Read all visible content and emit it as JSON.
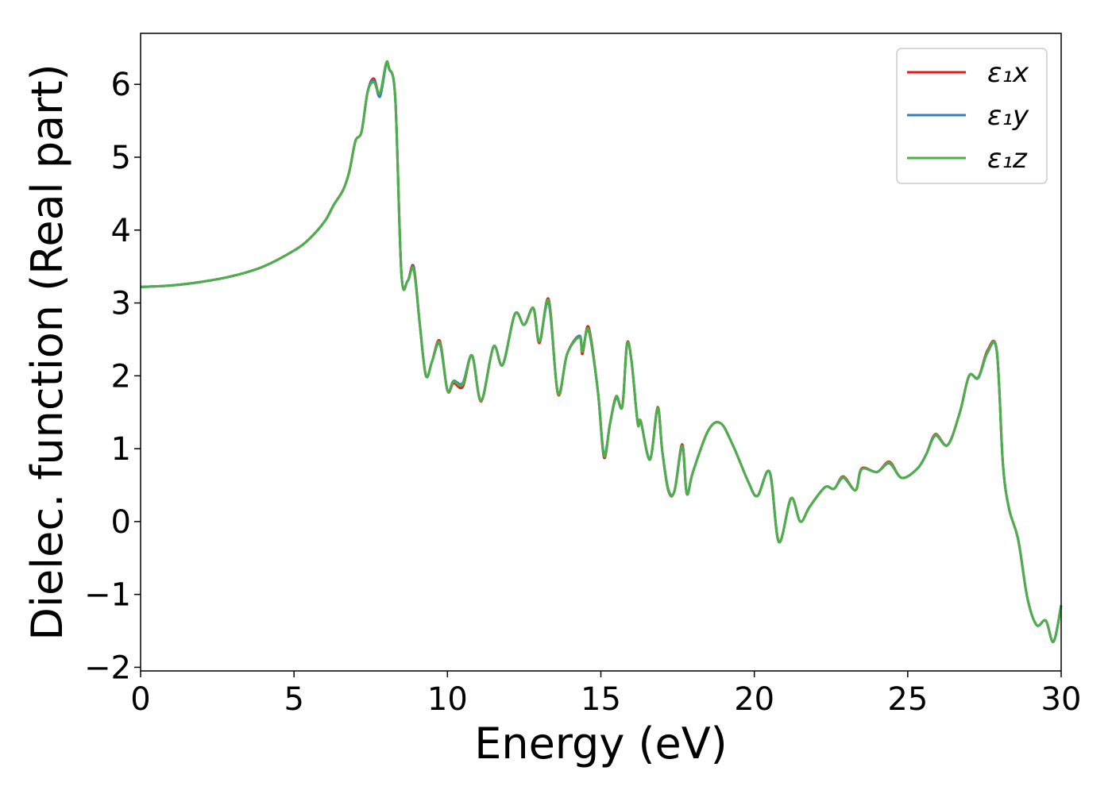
{
  "chart_data": {
    "type": "line",
    "xlabel": "Energy (eV)",
    "ylabel": "Dielec. function (Real part)",
    "xlim": [
      0,
      30
    ],
    "ylim": [
      -2.05,
      6.7
    ],
    "x_ticks": [
      0,
      5,
      10,
      15,
      20,
      25,
      30
    ],
    "x_tick_labels": [
      "0",
      "5",
      "10",
      "15",
      "20",
      "25",
      "30"
    ],
    "y_ticks": [
      -2,
      -1,
      0,
      1,
      2,
      3,
      4,
      5,
      6
    ],
    "y_tick_labels": [
      "−2",
      "−1",
      "0",
      "1",
      "2",
      "3",
      "4",
      "5",
      "6"
    ],
    "grid": false,
    "legend_position": "top-right",
    "x": [
      0,
      1,
      2,
      3,
      4,
      5,
      5.5,
      6,
      6.3,
      6.6,
      6.8,
      7.0,
      7.2,
      7.4,
      7.6,
      7.8,
      8.0,
      8.1,
      8.3,
      8.5,
      8.7,
      8.9,
      9.1,
      9.3,
      9.5,
      9.75,
      10.0,
      10.2,
      10.5,
      10.8,
      11.1,
      11.5,
      11.8,
      12.2,
      12.5,
      12.8,
      13.0,
      13.3,
      13.6,
      13.9,
      14.3,
      14.4,
      14.6,
      14.9,
      15.1,
      15.3,
      15.5,
      15.7,
      15.85,
      16.0,
      16.2,
      16.3,
      16.6,
      16.85,
      17.0,
      17.2,
      17.4,
      17.65,
      17.8,
      18.0,
      18.5,
      18.9,
      19.3,
      19.8,
      20.1,
      20.5,
      20.8,
      21.2,
      21.5,
      21.8,
      22.3,
      22.6,
      22.9,
      23.3,
      23.5,
      24.0,
      24.4,
      24.8,
      25.3,
      25.6,
      25.9,
      26.3,
      26.7,
      27.0,
      27.3,
      27.6,
      27.9,
      28.1,
      28.3,
      28.6,
      28.9,
      29.2,
      29.5,
      29.75,
      30.0
    ],
    "series": [
      {
        "name": "ε₁x",
        "color": "#e41a1c",
        "values": [
          3.22,
          3.24,
          3.29,
          3.37,
          3.5,
          3.72,
          3.88,
          4.12,
          4.35,
          4.55,
          4.8,
          5.22,
          5.35,
          5.9,
          6.08,
          5.85,
          6.28,
          6.22,
          5.8,
          3.4,
          3.3,
          3.5,
          2.7,
          2.0,
          2.2,
          2.48,
          1.8,
          1.9,
          1.85,
          2.28,
          1.65,
          2.4,
          2.15,
          2.85,
          2.7,
          2.93,
          2.45,
          3.05,
          1.75,
          2.3,
          2.55,
          2.3,
          2.67,
          1.8,
          0.88,
          1.35,
          1.72,
          1.58,
          2.44,
          2.2,
          1.35,
          1.38,
          0.85,
          1.57,
          0.97,
          0.42,
          0.42,
          1.06,
          0.38,
          0.68,
          1.25,
          1.35,
          1.05,
          0.55,
          0.35,
          0.68,
          -0.28,
          0.32,
          0.0,
          0.2,
          0.47,
          0.45,
          0.62,
          0.43,
          0.73,
          0.68,
          0.82,
          0.6,
          0.72,
          0.92,
          1.2,
          1.05,
          1.5,
          2.0,
          1.98,
          2.35,
          2.35,
          0.8,
          0.18,
          -0.25,
          -1.05,
          -1.42,
          -1.36,
          -1.65,
          -1.15
        ]
      },
      {
        "name": "ε₁y",
        "color": "#377eb8",
        "values": [
          3.22,
          3.24,
          3.29,
          3.37,
          3.5,
          3.72,
          3.88,
          4.12,
          4.35,
          4.55,
          4.8,
          5.22,
          5.35,
          5.9,
          6.06,
          5.83,
          6.27,
          6.21,
          5.8,
          3.4,
          3.3,
          3.48,
          2.7,
          2.0,
          2.2,
          2.44,
          1.8,
          1.93,
          1.9,
          2.28,
          1.66,
          2.4,
          2.15,
          2.85,
          2.7,
          2.93,
          2.47,
          3.0,
          1.77,
          2.3,
          2.55,
          2.35,
          2.62,
          1.8,
          0.92,
          1.35,
          1.7,
          1.58,
          2.42,
          2.2,
          1.35,
          1.38,
          0.86,
          1.55,
          0.97,
          0.44,
          0.42,
          1.02,
          0.38,
          0.68,
          1.25,
          1.35,
          1.05,
          0.55,
          0.35,
          0.68,
          -0.28,
          0.32,
          0.0,
          0.2,
          0.47,
          0.45,
          0.6,
          0.43,
          0.72,
          0.68,
          0.8,
          0.6,
          0.72,
          0.92,
          1.18,
          1.05,
          1.5,
          2.0,
          1.97,
          2.32,
          2.34,
          0.8,
          0.18,
          -0.25,
          -1.05,
          -1.42,
          -1.36,
          -1.65,
          -1.15
        ]
      },
      {
        "name": "ε₁z",
        "color": "#4daf4a",
        "values": [
          3.22,
          3.24,
          3.29,
          3.37,
          3.5,
          3.72,
          3.88,
          4.12,
          4.35,
          4.55,
          4.8,
          5.22,
          5.35,
          5.9,
          6.03,
          5.88,
          6.29,
          6.22,
          5.8,
          3.4,
          3.3,
          3.46,
          2.7,
          2.0,
          2.2,
          2.46,
          1.8,
          1.92,
          1.88,
          2.28,
          1.66,
          2.4,
          2.15,
          2.85,
          2.7,
          2.93,
          2.47,
          3.03,
          1.76,
          2.3,
          2.53,
          2.33,
          2.64,
          1.8,
          0.9,
          1.35,
          1.72,
          1.58,
          2.43,
          2.2,
          1.35,
          1.38,
          0.85,
          1.56,
          0.97,
          0.43,
          0.42,
          1.04,
          0.38,
          0.68,
          1.25,
          1.35,
          1.05,
          0.55,
          0.35,
          0.68,
          -0.28,
          0.32,
          0.0,
          0.2,
          0.47,
          0.45,
          0.61,
          0.43,
          0.72,
          0.68,
          0.81,
          0.6,
          0.72,
          0.92,
          1.19,
          1.05,
          1.5,
          2.0,
          1.98,
          2.33,
          2.35,
          0.8,
          0.18,
          -0.25,
          -1.05,
          -1.42,
          -1.36,
          -1.65,
          -1.15
        ]
      }
    ]
  }
}
